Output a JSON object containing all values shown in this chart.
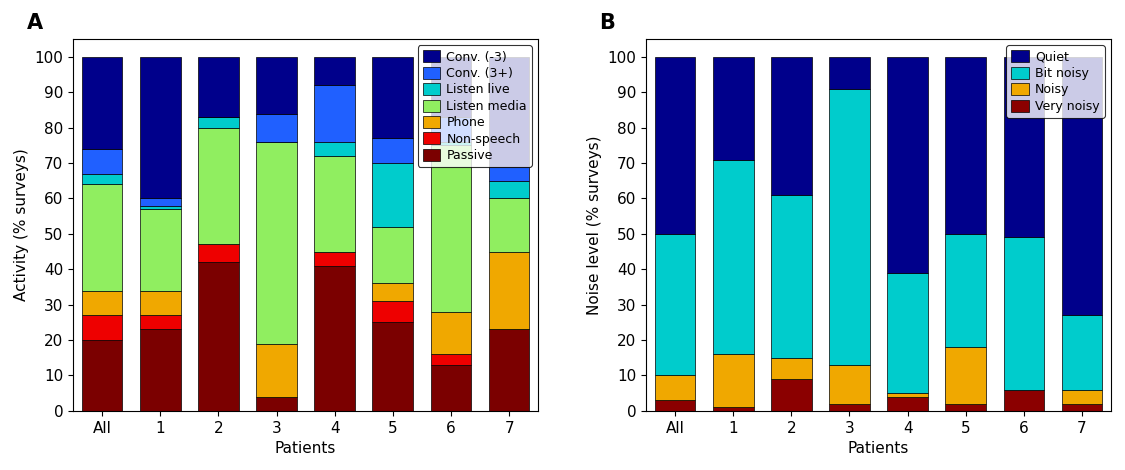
{
  "chart_A": {
    "categories": [
      "All",
      "1",
      "2",
      "3",
      "4",
      "5",
      "6",
      "7"
    ],
    "layers": {
      "Passive": [
        20,
        23,
        42,
        4,
        41,
        25,
        13,
        23
      ],
      "Non-speech": [
        7,
        4,
        5,
        0,
        4,
        6,
        3,
        0
      ],
      "Phone": [
        7,
        7,
        0,
        15,
        0,
        5,
        12,
        22
      ],
      "Listen media": [
        30,
        23,
        33,
        57,
        27,
        16,
        47,
        15
      ],
      "Listen live": [
        3,
        1,
        3,
        0,
        4,
        18,
        1,
        5
      ],
      "Conv. (3+)": [
        7,
        2,
        0,
        8,
        16,
        7,
        7,
        4
      ],
      "Conv. (-3)": [
        26,
        40,
        17,
        16,
        8,
        23,
        17,
        31
      ]
    },
    "colors": {
      "Passive": "#7B0000",
      "Non-speech": "#EE0000",
      "Phone": "#F0A800",
      "Listen media": "#90EE60",
      "Listen live": "#00CCCC",
      "Conv. (3+)": "#2060FF",
      "Conv. (-3)": "#00008B"
    },
    "ylabel": "Activity (% surveys)",
    "xlabel": "Patients",
    "title": "A",
    "legend_order": [
      "Conv. (-3)",
      "Conv. (3+)",
      "Listen live",
      "Listen media",
      "Phone",
      "Non-speech",
      "Passive"
    ]
  },
  "chart_B": {
    "categories": [
      "All",
      "1",
      "2",
      "3",
      "4",
      "5",
      "6",
      "7"
    ],
    "layers": {
      "Very noisy": [
        3,
        1,
        9,
        2,
        4,
        2,
        6,
        2
      ],
      "Noisy": [
        7,
        15,
        6,
        11,
        1,
        16,
        0,
        4
      ],
      "Bit noisy": [
        40,
        55,
        46,
        78,
        34,
        32,
        43,
        21
      ],
      "Quiet": [
        50,
        29,
        39,
        9,
        61,
        50,
        51,
        73
      ]
    },
    "colors": {
      "Very noisy": "#8B0000",
      "Noisy": "#F0A800",
      "Bit noisy": "#00CCCC",
      "Quiet": "#00008B"
    },
    "ylabel": "Noise level (% surveys)",
    "xlabel": "Patients",
    "title": "B",
    "legend_order": [
      "Quiet",
      "Bit noisy",
      "Noisy",
      "Very noisy"
    ]
  },
  "figsize": [
    11.25,
    4.7
  ],
  "dpi": 100,
  "ylim": [
    0,
    105
  ],
  "yticks": [
    0,
    10,
    20,
    30,
    40,
    50,
    60,
    70,
    80,
    90,
    100
  ],
  "bar_width": 0.7,
  "axis_fontsize": 11,
  "label_fontsize": 11,
  "legend_fontsize": 9,
  "title_fontsize": 15
}
